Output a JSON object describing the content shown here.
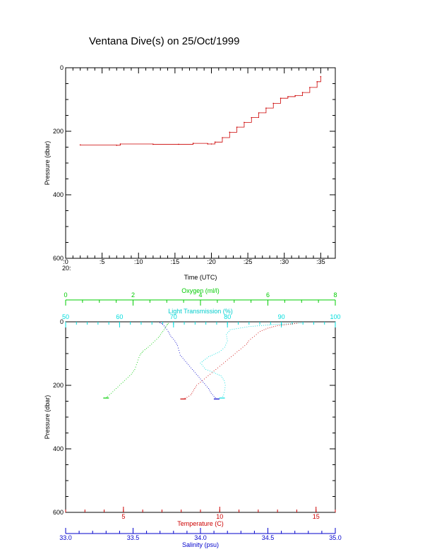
{
  "title": "Ventana Dive(s) on 25/Oct/1999",
  "colors": {
    "pressure_trace": "#cc0000",
    "oxygen": "#00cc00",
    "transmission": "#00dddd",
    "temperature": "#cc0000",
    "salinity": "#0000cc",
    "axis": "#000000"
  },
  "chart_data": [
    {
      "type": "line",
      "xlabel": "Time (UTC)",
      "ylabel": "Pressure (dbar)",
      "x_tick_labels": [
        ":0",
        ":5",
        ":10",
        ":15",
        ":20",
        ":25",
        ":30",
        ":35"
      ],
      "x_hour_label": "20:",
      "y_tick_labels": [
        "0",
        "200",
        "400",
        "600"
      ],
      "xlim_minutes": [
        0,
        37
      ],
      "ylim": [
        600,
        0
      ],
      "grid": false,
      "series": [
        {
          "color": "#cc0000",
          "x_minutes": [
            2.0,
            7.0,
            7.5,
            12.0,
            15.5,
            17.5,
            19.5,
            20.0,
            20.5,
            21.5,
            22.5,
            23.5,
            24.5,
            25.5,
            26.5,
            27.5,
            28.5,
            29.5,
            30.5,
            31.5,
            32.5,
            33.5,
            34.5,
            35.0
          ],
          "pressure": [
            243,
            244,
            240,
            241,
            241,
            238,
            240,
            240,
            234,
            220,
            203,
            187,
            172,
            157,
            142,
            127,
            112,
            96,
            91,
            88,
            78,
            62,
            44,
            28
          ]
        }
      ]
    },
    {
      "type": "scatter",
      "ylabel": "Pressure (dbar)",
      "y_tick_labels": [
        "0",
        "200",
        "400",
        "600"
      ],
      "ylim": [
        600,
        0
      ],
      "axes": {
        "oxygen": {
          "label": "Oxygen (ml/l)",
          "ticks": [
            "0",
            "2",
            "4",
            "6",
            "8"
          ],
          "range": [
            0,
            8
          ]
        },
        "transmission": {
          "label": "Light Transmission (%)",
          "ticks": [
            "50",
            "60",
            "70",
            "80",
            "90",
            "100"
          ],
          "range": [
            50,
            100
          ]
        },
        "temperature": {
          "label": "Temperature (C)",
          "ticks": [
            "5",
            "10",
            "15"
          ],
          "range": [
            2,
            16
          ]
        },
        "salinity": {
          "label": "Salinity (psu)",
          "ticks": [
            "33.0",
            "33.5",
            "34.0",
            "34.5",
            "35.0"
          ],
          "range": [
            33.0,
            35.0
          ]
        }
      },
      "series": [
        {
          "axis": "oxygen",
          "color": "#00cc00",
          "pressure": [
            240,
            235,
            225,
            210,
            195,
            180,
            165,
            150,
            135,
            120,
            105,
            92,
            80,
            65,
            50,
            35,
            20,
            10,
            5
          ],
          "values": [
            1.2,
            1.25,
            1.35,
            1.5,
            1.65,
            1.8,
            1.95,
            2.05,
            2.1,
            2.15,
            2.2,
            2.3,
            2.45,
            2.6,
            2.75,
            2.85,
            2.95,
            3.0,
            3.05
          ]
        },
        {
          "axis": "transmission",
          "color": "#00dddd",
          "pressure": [
            240,
            230,
            215,
            200,
            185,
            170,
            160,
            150,
            130,
            110,
            95,
            80,
            60,
            40,
            25,
            15,
            8,
            4
          ],
          "values": [
            79.0,
            79.3,
            79.5,
            79.6,
            79.4,
            78.8,
            77.5,
            76.0,
            75.0,
            76.5,
            78.5,
            79.5,
            80.0,
            79.8,
            80.5,
            84.0,
            89.0,
            94.0
          ]
        },
        {
          "axis": "temperature",
          "color": "#cc0000",
          "pressure": [
            243,
            238,
            230,
            220,
            210,
            200,
            190,
            180,
            170,
            160,
            150,
            140,
            130,
            120,
            110,
            100,
            90,
            80,
            70,
            60,
            50,
            40,
            30,
            20,
            12,
            5
          ],
          "values": [
            8.1,
            8.3,
            8.5,
            8.6,
            8.7,
            8.8,
            9.0,
            9.2,
            9.4,
            9.6,
            9.8,
            10.0,
            10.2,
            10.4,
            10.6,
            10.8,
            11.0,
            11.2,
            11.4,
            11.5,
            11.7,
            11.9,
            12.1,
            12.5,
            13.0,
            14.0
          ]
        },
        {
          "axis": "salinity",
          "color": "#0000cc",
          "pressure": [
            243,
            235,
            225,
            210,
            195,
            180,
            165,
            150,
            135,
            120,
            105,
            90,
            75,
            60,
            45,
            30,
            18,
            8,
            3
          ],
          "values": [
            34.12,
            34.1,
            34.08,
            34.06,
            34.03,
            34.0,
            33.97,
            33.94,
            33.91,
            33.88,
            33.85,
            33.84,
            33.83,
            33.81,
            33.78,
            33.76,
            33.74,
            33.72,
            33.7
          ]
        }
      ]
    }
  ]
}
